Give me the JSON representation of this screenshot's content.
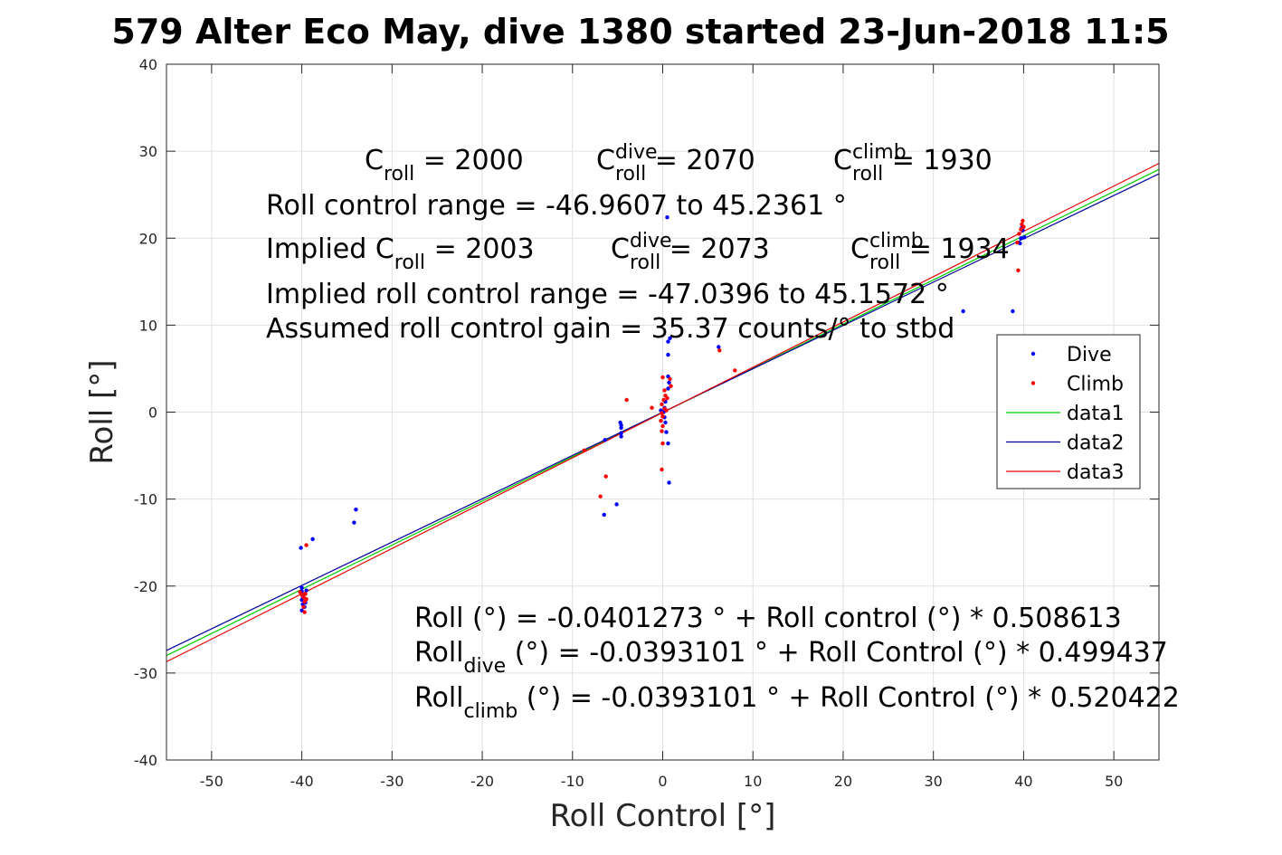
{
  "chart_data": {
    "type": "scatter",
    "title": "579 Alter Eco May, dive 1380 started 23-Jun-2018 11:5",
    "xlabel": "Roll Control [°]",
    "ylabel": "Roll [°]",
    "xlim": [
      -55,
      55
    ],
    "ylim": [
      -40,
      40
    ],
    "xticks": [
      -50,
      -40,
      -30,
      -20,
      -10,
      0,
      10,
      20,
      30,
      40,
      50
    ],
    "yticks": [
      -40,
      -30,
      -20,
      -10,
      0,
      10,
      20,
      30,
      40
    ],
    "grid": true,
    "legend_position": "right",
    "colors": {
      "dive": "#0000ff",
      "climb": "#ff0000",
      "data1": "#00cc00",
      "data2": "#000099",
      "data3": "#e60000"
    },
    "series": [
      {
        "name": "Dive",
        "kind": "points",
        "color": "#0000ff",
        "points": [
          [
            -40.0,
            -20.2
          ],
          [
            -40.0,
            -20.6
          ],
          [
            -39.9,
            -21.2
          ],
          [
            -40.0,
            -21.6
          ],
          [
            -39.9,
            -22.1
          ],
          [
            -40.0,
            -22.8
          ],
          [
            -39.7,
            -22.4
          ],
          [
            -40.1,
            -15.6
          ],
          [
            -38.8,
            -14.6
          ],
          [
            -39.5,
            -20.5
          ],
          [
            -39.6,
            -21.9
          ],
          [
            -34.0,
            -11.2
          ],
          [
            -34.2,
            -12.7
          ],
          [
            -6.5,
            -11.8
          ],
          [
            -5.1,
            -10.6
          ],
          [
            -6.4,
            -3.2
          ],
          [
            -4.7,
            -1.2
          ],
          [
            -4.6,
            -1.8
          ],
          [
            -4.6,
            -2.4
          ],
          [
            -4.6,
            -2.8
          ],
          [
            -4.6,
            -1.5
          ],
          [
            0.5,
            22.4
          ],
          [
            0.8,
            8.5
          ],
          [
            0.6,
            8.1
          ],
          [
            0.6,
            6.6
          ],
          [
            0.6,
            4.1
          ],
          [
            0.7,
            3.4
          ],
          [
            0.6,
            2.7
          ],
          [
            0.3,
            1.2
          ],
          [
            0.2,
            0.5
          ],
          [
            0.1,
            0.0
          ],
          [
            0.2,
            -0.6
          ],
          [
            0.3,
            -1.2
          ],
          [
            0.4,
            -2.3
          ],
          [
            0.6,
            -3.6
          ],
          [
            0.7,
            -8.1
          ],
          [
            -0.2,
            0.2
          ],
          [
            6.2,
            7.5
          ],
          [
            33.3,
            11.6
          ],
          [
            38.8,
            11.6
          ],
          [
            39.6,
            19.4
          ],
          [
            39.7,
            20.0
          ],
          [
            39.9,
            20.9
          ],
          [
            39.8,
            21.2
          ],
          [
            40.1,
            20.1
          ]
        ]
      },
      {
        "name": "Climb",
        "kind": "points",
        "color": "#ff0000",
        "points": [
          [
            -39.5,
            -15.3
          ],
          [
            -40.0,
            -21.0
          ],
          [
            -39.8,
            -21.3
          ],
          [
            -39.7,
            -21.8
          ],
          [
            -39.8,
            -22.4
          ],
          [
            -39.7,
            -23.0
          ],
          [
            -39.5,
            -21.5
          ],
          [
            -39.6,
            -20.9
          ],
          [
            -40.2,
            -20.7
          ],
          [
            -8.7,
            -4.4
          ],
          [
            -6.9,
            -9.7
          ],
          [
            -6.3,
            -7.4
          ],
          [
            -4.0,
            1.4
          ],
          [
            -1.2,
            0.5
          ],
          [
            0.0,
            4.0
          ],
          [
            0.2,
            2.5
          ],
          [
            0.3,
            1.9
          ],
          [
            0.1,
            1.4
          ],
          [
            -0.1,
            0.9
          ],
          [
            0.2,
            0.4
          ],
          [
            -0.1,
            -0.1
          ],
          [
            0.0,
            -0.5
          ],
          [
            -0.2,
            -1.0
          ],
          [
            0.0,
            -1.6
          ],
          [
            -0.1,
            -2.2
          ],
          [
            0.0,
            -3.6
          ],
          [
            -0.1,
            -6.6
          ],
          [
            0.8,
            3.8
          ],
          [
            0.9,
            3.0
          ],
          [
            0.5,
            1.6
          ],
          [
            0.4,
            0.2
          ],
          [
            6.3,
            7.1
          ],
          [
            8.0,
            4.8
          ],
          [
            39.4,
            16.3
          ],
          [
            39.3,
            19.5
          ],
          [
            39.5,
            20.5
          ],
          [
            39.7,
            21.0
          ],
          [
            39.8,
            21.6
          ],
          [
            39.9,
            22.0
          ],
          [
            40.0,
            21.3
          ]
        ]
      },
      {
        "name": "data1",
        "kind": "line",
        "color": "#00cc00",
        "points": [
          [
            -55,
            -28.0
          ],
          [
            55,
            27.9
          ]
        ]
      },
      {
        "name": "data2",
        "kind": "line",
        "color": "#000099",
        "points": [
          [
            -55,
            -27.4
          ],
          [
            55,
            27.4
          ]
        ]
      },
      {
        "name": "data3",
        "kind": "line",
        "color": "#e60000",
        "points": [
          [
            -55,
            -28.7
          ],
          [
            55,
            28.6
          ]
        ]
      }
    ],
    "annotations_top": [
      {
        "parts": [
          [
            "C",
            ""
          ],
          [
            "roll",
            "sub"
          ],
          [
            " = 2000",
            ""
          ]
        ]
      },
      {
        "parts": [
          [
            "C",
            ""
          ],
          [
            "dive",
            "sup"
          ],
          [
            "roll",
            "sub"
          ],
          [
            " = 2070",
            ""
          ]
        ]
      },
      {
        "parts": [
          [
            "C",
            ""
          ],
          [
            "climb",
            "sup"
          ],
          [
            "roll",
            "sub"
          ],
          [
            " = 1930",
            ""
          ]
        ]
      },
      {
        "parts": [
          [
            "Roll control range = -46.9607 to 45.2361 °",
            ""
          ]
        ]
      },
      {
        "parts": [
          [
            "Implied C",
            ""
          ],
          [
            "roll",
            "sub"
          ],
          [
            " = 2003",
            ""
          ]
        ]
      },
      {
        "parts": [
          [
            "C",
            ""
          ],
          [
            "dive",
            "sup"
          ],
          [
            "roll",
            "sub"
          ],
          [
            " = 2073",
            ""
          ]
        ]
      },
      {
        "parts": [
          [
            "C",
            ""
          ],
          [
            "climb",
            "sup"
          ],
          [
            "roll",
            "sub"
          ],
          [
            " = 1934",
            ""
          ]
        ]
      },
      {
        "parts": [
          [
            "Implied roll control range = -47.0396 to 45.1572 °",
            ""
          ]
        ]
      },
      {
        "parts": [
          [
            "Assumed roll control gain = 35.37 counts/° to stbd",
            ""
          ]
        ]
      }
    ],
    "annotations_bottom": [
      {
        "parts": [
          [
            "Roll (°) = -0.0401273 ° + Roll control (°) * 0.508613",
            ""
          ]
        ]
      },
      {
        "parts": [
          [
            "Roll",
            ""
          ],
          [
            "dive",
            "sub"
          ],
          [
            " (°) = -0.0393101 ° + Roll Control (°) * 0.499437",
            ""
          ]
        ]
      },
      {
        "parts": [
          [
            "Roll",
            ""
          ],
          [
            "climb",
            "sub"
          ],
          [
            " (°) = -0.0393101 ° + Roll Control (°) * 0.520422",
            ""
          ]
        ]
      }
    ]
  }
}
